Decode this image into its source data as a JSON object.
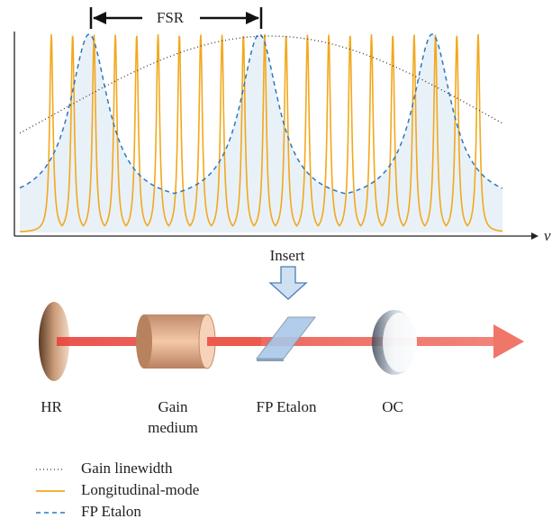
{
  "plot": {
    "bracket_label": "FSR",
    "axis_label": "ν"
  },
  "insert_label": "Insert",
  "components": {
    "hr": "HR",
    "gain_medium": [
      "Gain",
      "medium"
    ],
    "etalon": "FP Etalon",
    "oc": "OC"
  },
  "legend": [
    "Gain linewidth",
    "Longitudinal-mode",
    "FP Etalon"
  ]
}
